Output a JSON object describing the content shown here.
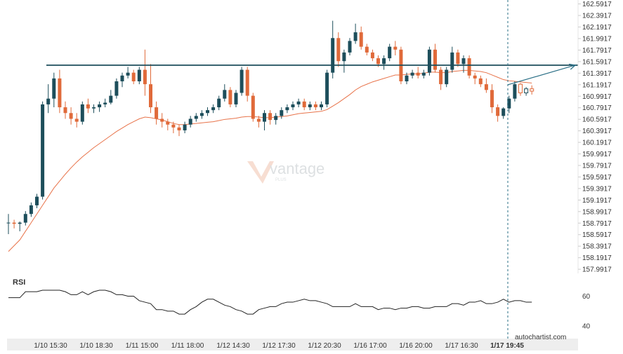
{
  "chart_data": {
    "type": "candlestick",
    "y_ticks": [
      "162.5917",
      "162.3917",
      "162.1917",
      "161.9917",
      "161.7917",
      "161.5917",
      "161.3917",
      "161.1917",
      "160.9917",
      "160.7917",
      "160.5917",
      "160.3917",
      "160.1917",
      "159.9917",
      "159.7917",
      "159.5917",
      "159.3917",
      "159.1917",
      "158.9917",
      "158.7917",
      "158.5917",
      "158.3917",
      "158.1917",
      "157.9917"
    ],
    "ylim": [
      157.92,
      162.66
    ],
    "x_ticks": [
      "1/10 15:30",
      "1/10 18:30",
      "1/11 15:00",
      "1/11 18:00",
      "1/12 14:30",
      "1/12 17:30",
      "1/12 20:30",
      "1/16 17:00",
      "1/16 20:00",
      "1/17 16:30",
      "1/17 19:45"
    ],
    "highlighted_x_tick": "1/17 19:45",
    "resistance_level": 161.53,
    "projection": {
      "from_value": 161.19,
      "to_value": 161.53
    },
    "candles": [
      [
        158.8,
        158.95,
        158.6,
        158.8
      ],
      [
        158.8,
        158.85,
        158.7,
        158.78
      ],
      [
        158.78,
        158.82,
        158.65,
        158.8
      ],
      [
        158.8,
        159.0,
        158.75,
        158.95
      ],
      [
        158.95,
        159.15,
        158.9,
        159.1
      ],
      [
        159.1,
        159.3,
        159.05,
        159.25
      ],
      [
        159.25,
        160.9,
        159.2,
        160.85
      ],
      [
        160.85,
        161.2,
        160.7,
        160.95
      ],
      [
        160.95,
        161.4,
        160.8,
        161.3
      ],
      [
        161.3,
        161.45,
        160.7,
        160.8
      ],
      [
        160.8,
        160.9,
        160.6,
        160.7
      ],
      [
        160.7,
        160.8,
        160.5,
        160.6
      ],
      [
        160.6,
        160.7,
        160.45,
        160.55
      ],
      [
        160.55,
        160.9,
        160.5,
        160.85
      ],
      [
        160.85,
        160.95,
        160.7,
        160.78
      ],
      [
        160.78,
        160.85,
        160.7,
        160.8
      ],
      [
        160.8,
        160.9,
        160.72,
        160.85
      ],
      [
        160.85,
        160.95,
        160.8,
        160.88
      ],
      [
        160.88,
        161.1,
        160.85,
        161.0
      ],
      [
        161.0,
        161.3,
        160.95,
        161.25
      ],
      [
        161.25,
        161.4,
        161.15,
        161.35
      ],
      [
        161.35,
        161.5,
        161.3,
        161.4
      ],
      [
        161.4,
        161.45,
        161.2,
        161.25
      ],
      [
        161.25,
        161.5,
        161.2,
        161.45
      ],
      [
        161.45,
        161.8,
        161.0,
        161.2
      ],
      [
        161.2,
        161.55,
        160.7,
        160.8
      ],
      [
        160.8,
        160.9,
        160.5,
        160.6
      ],
      [
        160.6,
        160.7,
        160.45,
        160.55
      ],
      [
        160.55,
        160.6,
        160.4,
        160.5
      ],
      [
        160.5,
        160.55,
        160.35,
        160.45
      ],
      [
        160.45,
        160.5,
        160.3,
        160.4
      ],
      [
        160.4,
        160.55,
        160.35,
        160.5
      ],
      [
        160.5,
        160.65,
        160.45,
        160.6
      ],
      [
        160.6,
        160.7,
        160.55,
        160.65
      ],
      [
        160.65,
        160.75,
        160.6,
        160.7
      ],
      [
        160.7,
        160.8,
        160.65,
        160.75
      ],
      [
        160.75,
        160.85,
        160.7,
        160.8
      ],
      [
        160.8,
        161.0,
        160.75,
        160.95
      ],
      [
        160.95,
        161.2,
        160.9,
        161.1
      ],
      [
        161.1,
        161.15,
        160.8,
        160.85
      ],
      [
        160.85,
        161.1,
        160.8,
        161.05
      ],
      [
        161.05,
        161.5,
        161.0,
        161.45
      ],
      [
        161.45,
        161.5,
        160.9,
        161.0
      ],
      [
        161.0,
        161.05,
        160.55,
        160.6
      ],
      [
        160.6,
        160.65,
        160.45,
        160.55
      ],
      [
        160.55,
        160.75,
        160.4,
        160.7
      ],
      [
        160.7,
        160.75,
        160.5,
        160.58
      ],
      [
        160.58,
        160.7,
        160.5,
        160.65
      ],
      [
        160.65,
        160.8,
        160.6,
        160.75
      ],
      [
        160.75,
        160.85,
        160.7,
        160.8
      ],
      [
        160.8,
        160.9,
        160.75,
        160.85
      ],
      [
        160.85,
        160.95,
        160.8,
        160.9
      ],
      [
        160.9,
        160.95,
        160.75,
        160.8
      ],
      [
        160.8,
        160.9,
        160.75,
        160.85
      ],
      [
        160.85,
        160.9,
        160.75,
        160.8
      ],
      [
        160.8,
        160.9,
        160.75,
        160.85
      ],
      [
        160.85,
        161.45,
        160.8,
        161.4
      ],
      [
        161.4,
        162.3,
        161.3,
        162.0
      ],
      [
        162.0,
        162.1,
        161.5,
        161.6
      ],
      [
        161.6,
        161.8,
        161.4,
        161.75
      ],
      [
        161.75,
        162.0,
        161.7,
        161.95
      ],
      [
        161.95,
        162.25,
        161.9,
        162.1
      ],
      [
        162.1,
        162.2,
        161.8,
        161.85
      ],
      [
        161.85,
        161.9,
        161.7,
        161.75
      ],
      [
        161.75,
        161.8,
        161.6,
        161.65
      ],
      [
        161.65,
        161.7,
        161.5,
        161.55
      ],
      [
        161.55,
        161.7,
        161.45,
        161.65
      ],
      [
        161.65,
        161.9,
        161.6,
        161.85
      ],
      [
        161.85,
        161.95,
        161.7,
        161.8
      ],
      [
        161.8,
        161.85,
        161.2,
        161.25
      ],
      [
        161.25,
        161.4,
        161.2,
        161.35
      ],
      [
        161.35,
        161.45,
        161.3,
        161.4
      ],
      [
        161.4,
        161.5,
        161.3,
        161.35
      ],
      [
        161.35,
        161.45,
        161.3,
        161.4
      ],
      [
        161.4,
        161.85,
        161.35,
        161.8
      ],
      [
        161.8,
        161.9,
        161.4,
        161.45
      ],
      [
        161.45,
        161.5,
        161.1,
        161.2
      ],
      [
        161.2,
        161.5,
        161.15,
        161.45
      ],
      [
        161.45,
        161.85,
        161.4,
        161.75
      ],
      [
        161.75,
        161.8,
        161.5,
        161.55
      ],
      [
        161.55,
        161.7,
        161.4,
        161.65
      ],
      [
        161.65,
        161.7,
        161.3,
        161.35
      ],
      [
        161.35,
        161.4,
        161.2,
        161.3
      ],
      [
        161.3,
        161.35,
        161.15,
        161.2
      ],
      [
        161.2,
        161.3,
        161.05,
        161.1
      ],
      [
        161.1,
        161.2,
        160.7,
        160.8
      ],
      [
        160.8,
        160.85,
        160.55,
        160.65
      ],
      [
        160.65,
        160.8,
        160.6,
        160.78
      ],
      [
        160.78,
        161.0,
        160.7,
        160.95
      ],
      [
        160.95,
        161.25,
        160.9,
        161.2
      ],
      [
        161.2,
        161.22,
        161.0,
        161.05
      ],
      [
        161.05,
        161.15,
        161.0,
        161.12
      ],
      [
        161.12,
        161.18,
        161.02,
        161.08
      ]
    ],
    "ma": [
      158.3,
      158.4,
      158.5,
      158.65,
      158.8,
      158.95,
      159.1,
      159.25,
      159.4,
      159.52,
      159.64,
      159.75,
      159.85,
      159.94,
      160.02,
      160.1,
      160.17,
      160.24,
      160.31,
      160.38,
      160.44,
      160.5,
      160.55,
      160.6,
      160.63,
      160.62,
      160.6,
      160.58,
      160.55,
      160.52,
      160.5,
      160.5,
      160.51,
      160.52,
      160.53,
      160.54,
      160.55,
      160.57,
      160.59,
      160.6,
      160.61,
      160.63,
      160.64,
      160.64,
      160.63,
      160.62,
      160.62,
      160.63,
      160.64,
      160.65,
      160.67,
      160.69,
      160.7,
      160.71,
      160.72,
      160.73,
      160.76,
      160.82,
      160.88,
      160.95,
      161.02,
      161.1,
      161.16,
      161.2,
      161.24,
      161.27,
      161.3,
      161.33,
      161.36,
      161.36,
      161.37,
      161.38,
      161.38,
      161.39,
      161.41,
      161.41,
      161.4,
      161.4,
      161.42,
      161.43,
      161.44,
      161.44,
      161.43,
      161.42,
      161.4,
      161.36,
      161.32,
      161.28,
      161.26,
      161.25,
      161.24,
      161.23,
      161.22
    ],
    "rsi_label": "RSI",
    "rsi_ticks": [
      "60",
      "40"
    ],
    "rsi_ylim": [
      33,
      72
    ],
    "rsi": [
      59,
      59,
      59,
      63,
      63,
      63,
      64,
      64,
      64,
      64,
      63,
      61,
      61,
      63,
      61,
      63,
      64,
      64,
      63,
      61,
      61,
      60,
      60,
      57,
      56,
      55,
      51,
      51,
      50,
      50,
      48,
      48,
      51,
      53,
      56,
      58,
      58,
      56,
      54,
      53,
      51,
      50,
      48,
      48,
      51,
      52,
      53,
      53,
      55,
      56,
      56,
      57,
      58,
      57,
      57,
      56,
      55,
      53,
      53,
      53,
      53,
      55,
      53,
      53,
      53,
      51,
      52,
      52,
      51,
      52,
      52,
      53,
      53,
      52,
      52,
      53,
      53,
      53,
      55,
      55,
      54,
      56,
      56,
      57,
      55,
      55,
      56,
      58,
      56,
      57,
      57,
      56,
      56
    ]
  },
  "watermark": {
    "brand": "vantage",
    "sub": "PLUS"
  },
  "footer": {
    "source": "autochartist.com"
  },
  "colors": {
    "bull": "#1d4e5b",
    "bear": "#e06a3a",
    "ma": "#e8734a",
    "resistance": "#1d4e5b",
    "projection": "#2a6f86",
    "rsi": "#222222",
    "grid_line": "#e6e6e6",
    "footer_bg": "#eeeeee"
  }
}
